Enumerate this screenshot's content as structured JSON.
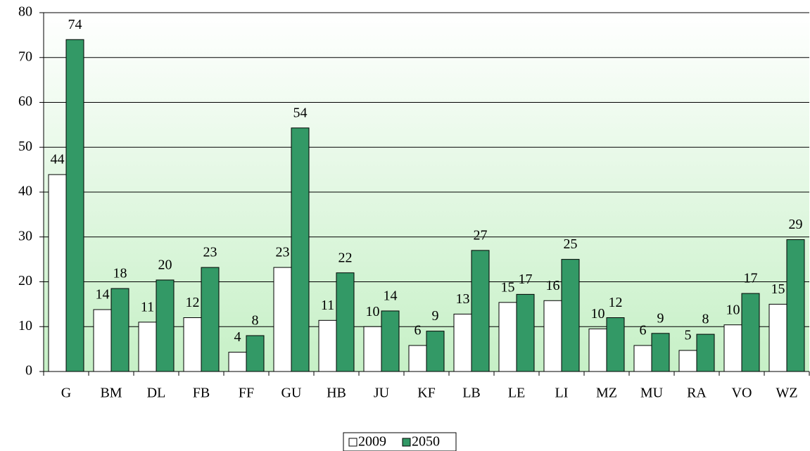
{
  "chart_data": {
    "type": "bar",
    "categories": [
      "G",
      "BM",
      "DL",
      "FB",
      "FF",
      "GU",
      "HB",
      "JU",
      "KF",
      "LB",
      "LE",
      "LI",
      "MZ",
      "MU",
      "RA",
      "VO",
      "WZ"
    ],
    "series": [
      {
        "name": "2009",
        "color": "#ffffff",
        "values": [
          43.9,
          13.8,
          11.0,
          12.0,
          4.3,
          23.2,
          11.4,
          10.0,
          5.8,
          12.8,
          15.4,
          15.8,
          9.5,
          5.8,
          4.7,
          10.4,
          15.0
        ],
        "value_labels": [
          "44",
          "14",
          "11",
          "12",
          "4",
          "23",
          "11",
          "10",
          "6",
          "13",
          "15",
          "16",
          "10",
          "6",
          "5",
          "10",
          "15"
        ]
      },
      {
        "name": "2050",
        "color": "#339966",
        "values": [
          74.0,
          18.5,
          20.4,
          23.2,
          8.0,
          54.3,
          22.0,
          13.5,
          9.0,
          27.0,
          17.2,
          25.0,
          12.0,
          8.5,
          8.3,
          17.4,
          29.4
        ],
        "value_labels": [
          "74",
          "18",
          "20",
          "23",
          "8",
          "54",
          "22",
          "14",
          "9",
          "27",
          "17",
          "25",
          "12",
          "9",
          "8",
          "17",
          "29"
        ]
      }
    ],
    "ylim": [
      0,
      80
    ],
    "yticks": [
      0,
      10,
      20,
      30,
      40,
      50,
      60,
      70,
      80
    ],
    "grid": true,
    "legend": "bottom"
  }
}
